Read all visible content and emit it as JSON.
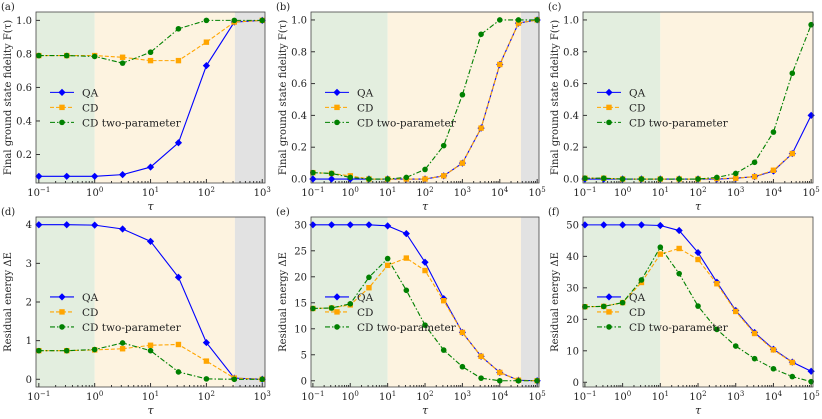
{
  "colors": {
    "QA": "#0000ff",
    "CD": "#ffa500",
    "CD2": "#008000",
    "shade_green": "#e3eedf",
    "shade_orange": "#fdf3e0",
    "shade_gray": "#e2e2e2"
  },
  "legend": [
    "QA",
    "CD",
    "CD two-parameter"
  ],
  "chart_data": [
    {
      "panel": "(a)",
      "type": "line",
      "xlabel": "τ",
      "ylabel": "Final ground state fidelity F(τ)",
      "xscale": "log",
      "xlim": [
        0.089,
        1120
      ],
      "ylim": [
        0.03,
        1.05
      ],
      "yticks": [
        0.2,
        0.4,
        0.6,
        0.8,
        1.0
      ],
      "ytick_labels": [
        "0.2",
        "0.4",
        "0.6",
        "0.8",
        "1.0"
      ],
      "xticks_exp": [
        -1,
        0,
        1,
        2,
        3
      ],
      "regions": {
        "green": [
          0.089,
          1
        ],
        "orange": [
          1,
          324
        ],
        "gray": [
          324,
          1120
        ]
      },
      "x": [
        0.1,
        0.316,
        1,
        3.16,
        10,
        31.6,
        100,
        316,
        1000
      ],
      "series": [
        {
          "name": "QA",
          "values": [
            0.07,
            0.07,
            0.07,
            0.08,
            0.125,
            0.27,
            0.73,
            0.99,
            1.0
          ]
        },
        {
          "name": "CD",
          "values": [
            0.79,
            0.79,
            0.79,
            0.78,
            0.76,
            0.76,
            0.87,
            0.99,
            1.0
          ]
        },
        {
          "name": "CD two-parameter",
          "values": [
            0.79,
            0.79,
            0.785,
            0.745,
            0.81,
            0.95,
            1.0,
            1.0,
            1.0
          ]
        }
      ]
    },
    {
      "panel": "(b)",
      "type": "line",
      "xlabel": "τ",
      "ylabel": "Final ground state fidelity F(τ)",
      "xscale": "log",
      "xlim": [
        0.089,
        112000
      ],
      "ylim": [
        -0.025,
        1.05
      ],
      "yticks": [
        0,
        0.2,
        0.4,
        0.6,
        0.8,
        1.0
      ],
      "ytick_labels": [
        "0.0",
        "0.2",
        "0.4",
        "0.6",
        "0.8",
        "1.0"
      ],
      "xticks_exp": [
        -1,
        0,
        1,
        2,
        3,
        4,
        5
      ],
      "regions": {
        "green": [
          0.089,
          10
        ],
        "orange": [
          10,
          37000
        ],
        "gray": [
          37000,
          112000
        ]
      },
      "x": [
        0.1,
        0.316,
        1,
        3.16,
        10,
        31.6,
        100,
        316,
        1000,
        3160,
        10000,
        31600,
        100000
      ],
      "series": [
        {
          "name": "QA",
          "values": [
            0,
            0,
            0,
            0,
            0,
            0,
            0,
            0.02,
            0.1,
            0.32,
            0.72,
            0.98,
            1.0
          ]
        },
        {
          "name": "CD",
          "values": [
            0.04,
            0.035,
            0.02,
            0,
            0,
            0,
            0,
            0.02,
            0.1,
            0.32,
            0.72,
            0.98,
            1.0
          ]
        },
        {
          "name": "CD two-parameter",
          "values": [
            0.04,
            0.035,
            0.01,
            0,
            0,
            0.01,
            0.06,
            0.21,
            0.53,
            0.91,
            1.0,
            1.0,
            1.0
          ]
        }
      ]
    },
    {
      "panel": "(c)",
      "type": "line",
      "xlabel": "τ",
      "ylabel": "Final ground state fidelity F(τ)",
      "xscale": "log",
      "xlim": [
        0.089,
        112000
      ],
      "ylim": [
        -0.025,
        1.05
      ],
      "yticks": [
        0,
        0.2,
        0.4,
        0.6,
        0.8,
        1.0
      ],
      "ytick_labels": [
        "0.0",
        "0.2",
        "0.4",
        "0.6",
        "0.8",
        "1.0"
      ],
      "xticks_exp": [
        -1,
        0,
        1,
        2,
        3,
        4,
        5
      ],
      "regions": {
        "green": [
          0.089,
          10
        ],
        "orange": [
          10,
          112000
        ]
      },
      "x": [
        0.1,
        0.316,
        1,
        3.16,
        10,
        31.6,
        100,
        316,
        1000,
        3160,
        10000,
        31600,
        100000
      ],
      "series": [
        {
          "name": "QA",
          "values": [
            0,
            0,
            0,
            0,
            0,
            0,
            0,
            0,
            0.005,
            0.015,
            0.05,
            0.16,
            0.4
          ]
        },
        {
          "name": "CD",
          "values": [
            0.005,
            0.005,
            0,
            0,
            0,
            0,
            0,
            0.003,
            0.005,
            0.015,
            0.055,
            0.16,
            null
          ]
        },
        {
          "name": "CD two-parameter",
          "values": [
            0.005,
            0.005,
            0,
            0,
            0,
            0,
            0,
            0.01,
            0.035,
            0.105,
            0.295,
            0.665,
            0.97
          ]
        }
      ]
    },
    {
      "panel": "(d)",
      "type": "line",
      "xlabel": "τ",
      "ylabel": "Residual energy ΔE",
      "xscale": "log",
      "xlim": [
        0.089,
        1120
      ],
      "ylim": [
        -0.2,
        4.2
      ],
      "yticks": [
        0,
        1,
        2,
        3,
        4
      ],
      "ytick_labels": [
        "0",
        "1",
        "2",
        "3",
        "4"
      ],
      "xticks_exp": [
        -1,
        0,
        1,
        2,
        3
      ],
      "regions": {
        "green": [
          0.089,
          1
        ],
        "orange": [
          1,
          324
        ],
        "gray": [
          324,
          1120
        ]
      },
      "x": [
        0.1,
        0.316,
        1,
        3.16,
        10,
        31.6,
        100,
        316,
        1000
      ],
      "series": [
        {
          "name": "QA",
          "values": [
            4.0,
            4.0,
            3.99,
            3.89,
            3.57,
            2.64,
            0.95,
            0.03,
            0
          ]
        },
        {
          "name": "CD",
          "values": [
            0.74,
            0.74,
            0.76,
            0.79,
            0.88,
            0.9,
            0.47,
            0.03,
            0
          ]
        },
        {
          "name": "CD two-parameter",
          "values": [
            0.74,
            0.74,
            0.77,
            0.94,
            0.74,
            0.19,
            0.01,
            0,
            0
          ]
        }
      ]
    },
    {
      "panel": "(e)",
      "type": "line",
      "xlabel": "τ",
      "ylabel": "Residual energy ΔE",
      "xscale": "log",
      "xlim": [
        0.089,
        112000
      ],
      "ylim": [
        -1.2,
        31.5
      ],
      "yticks": [
        0,
        5,
        10,
        15,
        20,
        25,
        30
      ],
      "ytick_labels": [
        "0",
        "5",
        "10",
        "15",
        "20",
        "25",
        "30"
      ],
      "xticks_exp": [
        -1,
        0,
        1,
        2,
        3,
        4,
        5
      ],
      "regions": {
        "green": [
          0.089,
          10
        ],
        "orange": [
          10,
          37000
        ],
        "gray": [
          37000,
          112000
        ]
      },
      "x": [
        0.1,
        0.316,
        1,
        3.16,
        10,
        31.6,
        100,
        316,
        1000,
        3160,
        10000,
        31600,
        100000
      ],
      "series": [
        {
          "name": "QA",
          "values": [
            30,
            30,
            30,
            30,
            29.8,
            28.3,
            22.8,
            15.8,
            9.3,
            4.7,
            1.6,
            0.1,
            0
          ]
        },
        {
          "name": "CD",
          "values": [
            13.9,
            14,
            14.6,
            17.9,
            22.2,
            23.6,
            21.2,
            15.4,
            9.3,
            4.7,
            1.6,
            0.1,
            0
          ]
        },
        {
          "name": "CD two-parameter",
          "values": [
            13.9,
            14,
            14.8,
            19.9,
            23.5,
            17.4,
            10.7,
            5.9,
            2.7,
            0.5,
            0,
            0,
            0
          ]
        }
      ]
    },
    {
      "panel": "(f)",
      "type": "line",
      "xlabel": "τ",
      "ylabel": "Residual energy ΔE",
      "xscale": "log",
      "xlim": [
        0.089,
        112000
      ],
      "ylim": [
        -1.5,
        52.5
      ],
      "yticks": [
        0,
        10,
        20,
        30,
        40,
        50
      ],
      "ytick_labels": [
        "0",
        "10",
        "20",
        "30",
        "40",
        "50"
      ],
      "xticks_exp": [
        -1,
        0,
        1,
        2,
        3,
        4,
        5
      ],
      "regions": {
        "green": [
          0.089,
          10
        ],
        "orange": [
          10,
          112000
        ]
      },
      "x": [
        0.1,
        0.316,
        1,
        3.16,
        10,
        31.6,
        100,
        316,
        1000,
        3160,
        10000,
        31600,
        100000
      ],
      "series": [
        {
          "name": "QA",
          "values": [
            50,
            50,
            50,
            50,
            49.8,
            48.2,
            41.2,
            31.8,
            22.8,
            15.8,
            10.5,
            6.4,
            3.5
          ]
        },
        {
          "name": "CD",
          "values": [
            24,
            24.1,
            25.3,
            31.7,
            40.7,
            42.5,
            39,
            31.3,
            22.5,
            15.5,
            10.3,
            6.3,
            null
          ]
        },
        {
          "name": "CD two-parameter",
          "values": [
            24,
            24.1,
            25.3,
            32.5,
            42.9,
            34.5,
            24.2,
            16.8,
            11.5,
            7.5,
            4.3,
            1.8,
            0.2
          ]
        }
      ]
    }
  ]
}
